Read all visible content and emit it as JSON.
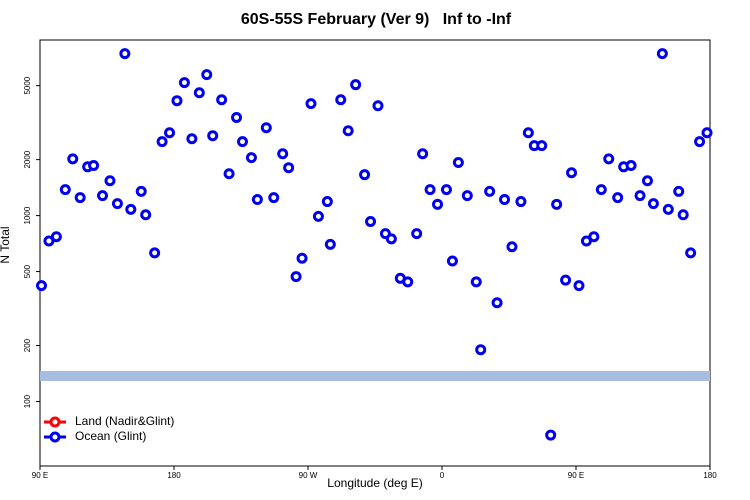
{
  "chart_data": {
    "type": "scatter",
    "title": "60S-55S February (Ver 9)   Inf to -Inf",
    "xlabel": "Longitude (deg E)",
    "ylabel": "N Total",
    "xlim": [
      90,
      540
    ],
    "ylim": [
      45,
      8800
    ],
    "log_y": true,
    "legend": "bottom-left",
    "xticks": [
      {
        "value": 90,
        "label": "90 E"
      },
      180,
      {
        "value": 270,
        "label": "90 W"
      },
      {
        "value": 360,
        "label": "0"
      },
      {
        "value": 450,
        "label": "90 E"
      },
      {
        "value": 540,
        "label": "180"
      }
    ],
    "yticks": [
      100,
      200,
      500,
      1000,
      2000,
      5000
    ],
    "series": [
      {
        "name": "Land (Nadir&Glint)",
        "color": "#ff0000",
        "x": [],
        "values": []
      },
      {
        "name": "Ocean (Glint)",
        "color": "#0000ee",
        "x": [
          91,
          96,
          101,
          107,
          112,
          117,
          122,
          126,
          132,
          137,
          142,
          147,
          151,
          158,
          161,
          167,
          172,
          177,
          182,
          187,
          192,
          197,
          202,
          206,
          212,
          217,
          222,
          226,
          232,
          236,
          242,
          247,
          253,
          257,
          262,
          266,
          272,
          277,
          283,
          285,
          292,
          297,
          302,
          308,
          312,
          317,
          322,
          326,
          332,
          337,
          343,
          347,
          352,
          357,
          363,
          367,
          371,
          377,
          383,
          386,
          392,
          397,
          402,
          407,
          413,
          418,
          422,
          427,
          433,
          437,
          443,
          447,
          452,
          457,
          462,
          467,
          472,
          478,
          482,
          487,
          493,
          498,
          502,
          508,
          512,
          519,
          522,
          527,
          533,
          538
        ],
        "values": [
          420,
          730,
          770,
          1380,
          2020,
          1250,
          1830,
          1860,
          1280,
          1540,
          1160,
          7430,
          1080,
          1350,
          1010,
          630,
          2500,
          2790,
          4150,
          5190,
          2590,
          4580,
          5730,
          2690,
          4200,
          1680,
          3370,
          2500,
          2050,
          1220,
          2970,
          1250,
          2150,
          1810,
          470,
          590,
          4000,
          990,
          1190,
          700,
          4200,
          2860,
          5060,
          1660,
          930,
          3900,
          800,
          750,
          460,
          440,
          800,
          2150,
          1380,
          1150,
          1380,
          570,
          1930,
          1280,
          440,
          190,
          1350,
          340,
          1220,
          680,
          1190,
          2790,
          2380,
          2380,
          66,
          1150,
          450,
          1700,
          420,
          730,
          770,
          1380,
          2020,
          1250,
          1830,
          1860,
          1280,
          1540,
          1160,
          7430,
          1080,
          1350,
          1010,
          630,
          2500,
          2790
        ]
      }
    ]
  }
}
